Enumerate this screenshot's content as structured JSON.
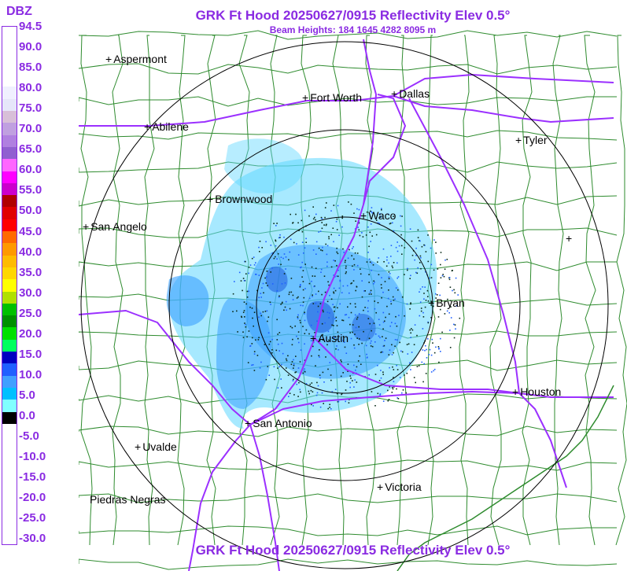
{
  "title": "GRK Ft Hood 20250627/0915 Reflectivity Elev 0.5°",
  "subtitle": "Beam Heights: 184 1645 4282 8095 m",
  "footer_title": "GRK Ft Hood 20250627/0915 Reflectivity Elev 0.5°",
  "legend": {
    "unit": "DBZ",
    "ticks": [
      "94.5",
      "90.0",
      "85.0",
      "80.0",
      "75.0",
      "70.0",
      "65.0",
      "60.0",
      "55.0",
      "50.0",
      "45.0",
      "40.0",
      "35.0",
      "30.0",
      "25.0",
      "20.0",
      "15.0",
      "10.0",
      "5.0",
      "0.0",
      "-5.0",
      "-10.0",
      "-15.0",
      "-20.0",
      "-25.0",
      "-30.0"
    ],
    "colors": [
      "#ffffff",
      "#ffffff",
      "#ffffff",
      "#ffffff",
      "#ffffff",
      "#f0f0ff",
      "#e6e6fa",
      "#d8bfd8",
      "#c0a0e0",
      "#b080e0",
      "#9060d0",
      "#ff66ff",
      "#ff00ff",
      "#cc00cc",
      "#b00000",
      "#e00000",
      "#ff0000",
      "#ff6a00",
      "#ff9900",
      "#ffbb00",
      "#ffd700",
      "#ffff00",
      "#b0e000",
      "#00c000",
      "#009000",
      "#00e000",
      "#00ff60",
      "#0000c0",
      "#2060ff",
      "#40a0ff",
      "#00c0ff",
      "#80ffff",
      "#000000",
      "#ffffff",
      "#ffffff",
      "#ffffff",
      "#ffffff",
      "#ffffff",
      "#ffffff",
      "#ffffff",
      "#ffffff",
      "#ffffff",
      "#ffffff"
    ]
  },
  "cities": [
    {
      "name": "Aspermont",
      "id": "aspermont"
    },
    {
      "name": "Fort Worth",
      "id": "fort-worth"
    },
    {
      "name": "Dallas",
      "id": "dallas"
    },
    {
      "name": "Abilene",
      "id": "abilene"
    },
    {
      "name": "Tyler",
      "id": "tyler"
    },
    {
      "name": "Brownwood",
      "id": "brownwood"
    },
    {
      "name": "Waco",
      "id": "waco"
    },
    {
      "name": "San Angelo",
      "id": "san-angelo"
    },
    {
      "name": "Bryan",
      "id": "bryan"
    },
    {
      "name": "Austin",
      "id": "austin"
    },
    {
      "name": "Houston",
      "id": "houston"
    },
    {
      "name": "San Antonio",
      "id": "san-antonio"
    },
    {
      "name": "Uvalde",
      "id": "uvalde"
    },
    {
      "name": "Victoria",
      "id": "victoria"
    },
    {
      "name": "Piedras Negras",
      "id": "piedras-negras"
    },
    {
      "name": "",
      "id": "unlabeled-east"
    }
  ],
  "colors": {
    "accent": "#8a2be2",
    "county_lines": "#2e8b2e",
    "highways": "#9b30ff",
    "range_rings": "#000000",
    "echo_light": "#5fd7ff",
    "echo_mid": "#3aa0ff",
    "echo_strong": "#2466e0"
  }
}
